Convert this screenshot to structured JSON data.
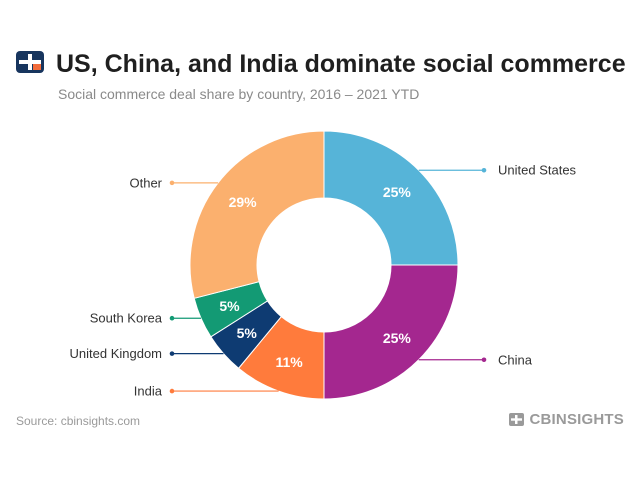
{
  "header": {
    "title": "US, China, and India dominate social commerce",
    "subtitle": "Social commerce deal share by country, 2016 – 2021 YTD"
  },
  "footer": {
    "source": "Source: cbinsights.com",
    "brand": "CBINSIGHTS"
  },
  "icons": {
    "logo": "cb-insights-logo-icon",
    "brand_logo": "cb-insights-brand-icon"
  },
  "chart_data": {
    "type": "pie",
    "donut": true,
    "title": "US, China, and India dominate social commerce",
    "subtitle": "Social commerce deal share by country, 2016 – 2021 YTD",
    "slices": [
      {
        "label": "United States",
        "value": 25,
        "display": "25%",
        "color": "#56b4d8"
      },
      {
        "label": "China",
        "value": 25,
        "display": "25%",
        "color": "#a4278f"
      },
      {
        "label": "India",
        "value": 11,
        "display": "11%",
        "color": "#ff7b3c"
      },
      {
        "label": "United Kingdom",
        "value": 5,
        "display": "5%",
        "color": "#0e3b72"
      },
      {
        "label": "South Korea",
        "value": 5,
        "display": "5%",
        "color": "#139a74"
      },
      {
        "label": "Other",
        "value": 29,
        "display": "29%",
        "color": "#fbb06e"
      }
    ],
    "start_angle": "12 o'clock",
    "direction": "clockwise"
  }
}
